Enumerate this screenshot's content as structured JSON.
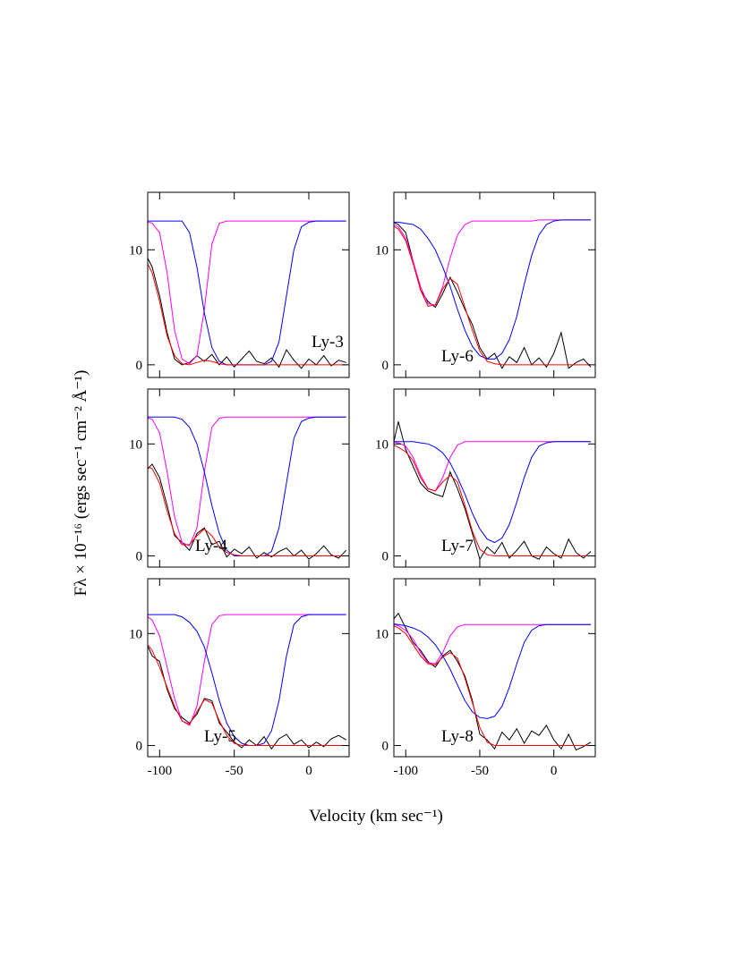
{
  "x_label": "Velocity (km sec⁻¹)",
  "y_label": "Fλ × 10⁻¹⁶ (ergs  sec⁻¹ cm⁻² Å⁻¹)",
  "chart_data": [
    {
      "type": "line",
      "label": "Ly-3",
      "xlim": [
        -108,
        27
      ],
      "ylim": [
        -1.1,
        15
      ],
      "xticks": [
        -100,
        -50,
        0
      ],
      "yticks": [
        0,
        10
      ],
      "x": [
        -110,
        -105,
        -100,
        -95,
        -90,
        -85,
        -80,
        -75,
        -70,
        -65,
        -60,
        -55,
        -50,
        -45,
        -40,
        -35,
        -30,
        -25,
        -20,
        -15,
        -10,
        -5,
        0,
        5,
        10,
        15,
        20,
        25
      ],
      "series": [
        {
          "color": "#000000",
          "values": [
            9.8,
            8.5,
            6,
            2.8,
            0.5,
            0,
            0.2,
            0.8,
            0.3,
            0.9,
            0,
            0.7,
            -0.2,
            0.5,
            1.2,
            0.3,
            0.1,
            0.6,
            -0.2,
            1.3,
            0.4,
            -0.3,
            0.5,
            0,
            0.8,
            -0.1,
            0.4,
            0.2
          ]
        },
        {
          "color": "#ff00ff",
          "values": [
            12.5,
            12.3,
            11.5,
            8,
            3,
            0.5,
            0.1,
            0.8,
            4.8,
            10.5,
            12.3,
            12.5,
            12.5,
            12.5,
            12.5,
            12.5,
            12.5,
            12.5,
            12.5,
            12.5,
            12.5,
            12.5,
            12.5,
            12.5,
            12.5,
            12.5,
            12.5,
            12.5
          ]
        },
        {
          "color": "#0000ff",
          "values": [
            12.5,
            12.5,
            12.5,
            12.5,
            12.5,
            12.5,
            11.5,
            8.5,
            4.5,
            1.5,
            0.3,
            0,
            0,
            0,
            0,
            0,
            0,
            0.3,
            2,
            6,
            10,
            12,
            12.4,
            12.5,
            12.5,
            12.5,
            12.5,
            12.5
          ]
        },
        {
          "color": "#ff0000",
          "values": [
            9.3,
            8,
            5.5,
            2.5,
            0.8,
            0.1,
            0,
            0.2,
            0.4,
            0.3,
            0.1,
            0,
            0,
            0,
            0,
            0,
            0,
            0,
            0,
            0,
            0,
            0,
            0,
            0,
            0,
            0,
            0,
            0
          ]
        }
      ]
    },
    {
      "type": "line",
      "label": "Ly-6",
      "xlim": [
        -108,
        28
      ],
      "ylim": [
        -1.1,
        15
      ],
      "xticks": [
        -100,
        -50,
        0
      ],
      "yticks": [
        0,
        10
      ],
      "x": [
        -110,
        -105,
        -100,
        -95,
        -90,
        -85,
        -80,
        -75,
        -70,
        -65,
        -60,
        -55,
        -50,
        -45,
        -40,
        -35,
        -30,
        -25,
        -20,
        -15,
        -10,
        -5,
        0,
        5,
        10,
        15,
        20,
        25
      ],
      "series": [
        {
          "color": "#000000",
          "values": [
            12.5,
            12.2,
            11.5,
            9,
            6.5,
            5.5,
            5,
            6.2,
            7.6,
            6.3,
            4.8,
            3.5,
            1.5,
            0.5,
            1,
            -0.3,
            0.7,
            0.2,
            1.5,
            0,
            0.6,
            -0.2,
            1,
            2.8,
            -0.3,
            0.2,
            0.5,
            -0.2
          ]
        },
        {
          "color": "#ff00ff",
          "values": [
            12.3,
            12,
            11,
            9,
            6.8,
            5.3,
            5.2,
            6.8,
            9.3,
            11.3,
            12.2,
            12.5,
            12.5,
            12.5,
            12.5,
            12.5,
            12.5,
            12.5,
            12.5,
            12.5,
            12.6,
            12.6,
            12.6,
            12.6,
            12.6,
            12.6,
            12.6,
            12.6
          ]
        },
        {
          "color": "#0000ff",
          "values": [
            12.4,
            12.4,
            12.3,
            12.2,
            11.8,
            11,
            10,
            8.5,
            6.8,
            4.8,
            3,
            1.6,
            0.8,
            0.5,
            0.5,
            1,
            2.2,
            4.2,
            7,
            9.5,
            11.3,
            12.2,
            12.5,
            12.6,
            12.6,
            12.6,
            12.6,
            12.6
          ]
        },
        {
          "color": "#ff0000",
          "values": [
            12.2,
            11.8,
            10.8,
            8.8,
            6.5,
            5.1,
            5.2,
            6.6,
            7.5,
            7,
            5,
            3,
            1.2,
            0.3,
            0.1,
            0,
            0,
            0,
            0,
            0,
            0,
            0,
            0,
            0,
            0,
            0,
            0,
            0
          ]
        }
      ]
    },
    {
      "type": "line",
      "label": "Ly-4",
      "xlim": [
        -108,
        27
      ],
      "ylim": [
        -1,
        14.9
      ],
      "xticks": [
        -100,
        -50,
        0
      ],
      "yticks": [
        0,
        10
      ],
      "x": [
        -110,
        -105,
        -100,
        -95,
        -90,
        -85,
        -80,
        -75,
        -70,
        -65,
        -60,
        -55,
        -50,
        -45,
        -40,
        -35,
        -30,
        -25,
        -20,
        -15,
        -10,
        -5,
        0,
        5,
        10,
        15,
        20,
        25
      ],
      "series": [
        {
          "color": "#000000",
          "values": [
            7.5,
            8.2,
            7,
            4.5,
            1.8,
            1.2,
            0.5,
            2,
            2.5,
            1,
            1.3,
            -0.1,
            0.6,
            0.2,
            0.8,
            -0.2,
            0.3,
            -0.1,
            0.4,
            0.7,
            0,
            0.5,
            -0.3,
            0.2,
            0.9,
            0.1,
            -0.2,
            0.5
          ]
        },
        {
          "color": "#ff00ff",
          "values": [
            12.4,
            12.2,
            11,
            7.5,
            3.5,
            1.2,
            0.9,
            2.5,
            7.5,
            11.5,
            12.3,
            12.4,
            12.4,
            12.4,
            12.4,
            12.4,
            12.4,
            12.4,
            12.4,
            12.4,
            12.4,
            12.4,
            12.4,
            12.4,
            12.4,
            12.4,
            12.4,
            12.4
          ]
        },
        {
          "color": "#0000ff",
          "values": [
            12.4,
            12.4,
            12.4,
            12.4,
            12.4,
            12.2,
            11.5,
            10,
            7.5,
            4.5,
            2,
            0.5,
            0,
            0,
            0,
            0,
            0,
            0.4,
            2.5,
            6.5,
            10.5,
            12,
            12.3,
            12.4,
            12.4,
            12.4,
            12.4,
            12.4
          ]
        },
        {
          "color": "#ff0000",
          "values": [
            8,
            7.8,
            6.5,
            4,
            2,
            1,
            1,
            1.8,
            2.4,
            1.8,
            0.8,
            0.3,
            0.1,
            0,
            0,
            0,
            0,
            0,
            0,
            0,
            0,
            0,
            0,
            0,
            0,
            0,
            0,
            0
          ]
        }
      ]
    },
    {
      "type": "line",
      "label": "Ly-7",
      "xlim": [
        -108,
        28
      ],
      "ylim": [
        -1,
        14.9
      ],
      "xticks": [
        -100,
        -50,
        0
      ],
      "yticks": [
        0,
        10
      ],
      "x": [
        -110,
        -105,
        -100,
        -95,
        -90,
        -85,
        -80,
        -75,
        -70,
        -65,
        -60,
        -55,
        -50,
        -45,
        -40,
        -35,
        -30,
        -25,
        -20,
        -15,
        -10,
        -5,
        0,
        5,
        10,
        15,
        20,
        25
      ],
      "series": [
        {
          "color": "#000000",
          "values": [
            9,
            12,
            9.5,
            8,
            6.5,
            5.8,
            5.5,
            5.3,
            7.5,
            6,
            4.2,
            2,
            -0.3,
            0.8,
            0.2,
            1.2,
            -0.2,
            0.5,
            1.3,
            0,
            -0.3,
            0.8,
            0.2,
            -0.2,
            1.5,
            0.3,
            -0.2,
            0.4
          ]
        },
        {
          "color": "#ff00ff",
          "values": [
            10.2,
            10.1,
            9.8,
            8.8,
            7.2,
            6,
            5.8,
            7,
            8.8,
            9.9,
            10.2,
            10.2,
            10.2,
            10.2,
            10.2,
            10.2,
            10.2,
            10.2,
            10.2,
            10.2,
            10.2,
            10.2,
            10.2,
            10.2,
            10.2,
            10.2,
            10.2,
            10.2
          ]
        },
        {
          "color": "#0000ff",
          "values": [
            10.2,
            10.2,
            10.2,
            10.2,
            10.1,
            10,
            9.7,
            9.2,
            8.3,
            7,
            5.5,
            3.8,
            2.4,
            1.5,
            1.2,
            1.6,
            2.8,
            4.8,
            7,
            8.8,
            9.8,
            10.1,
            10.2,
            10.2,
            10.2,
            10.2,
            10.2,
            10.2
          ]
        },
        {
          "color": "#ff0000",
          "values": [
            10,
            9.7,
            9.3,
            8.5,
            7,
            6,
            5.8,
            6.6,
            7.2,
            6.6,
            4.5,
            2.2,
            0.6,
            0.1,
            0,
            0,
            0,
            0,
            0,
            0,
            0,
            0,
            0,
            0,
            0,
            0,
            0,
            0
          ]
        }
      ]
    },
    {
      "type": "line",
      "label": "Ly-5",
      "xlim": [
        -108,
        27
      ],
      "ylim": [
        -1,
        14.9
      ],
      "xticks": [
        -100,
        -50,
        0
      ],
      "yticks": [
        0,
        10
      ],
      "x": [
        -110,
        -105,
        -100,
        -95,
        -90,
        -85,
        -80,
        -75,
        -70,
        -65,
        -60,
        -55,
        -50,
        -45,
        -40,
        -35,
        -30,
        -25,
        -20,
        -15,
        -10,
        -5,
        0,
        5,
        10,
        15,
        20,
        25
      ],
      "series": [
        {
          "color": "#000000",
          "values": [
            9.5,
            8,
            7.5,
            5,
            3.3,
            2.5,
            2,
            2.8,
            4.2,
            4,
            2,
            1.2,
            0.3,
            -0.2,
            0.5,
            0,
            0.8,
            -0.3,
            0.6,
            1,
            0.1,
            0.5,
            -0.2,
            0.3,
            -0.1,
            0.6,
            0.9,
            0.5
          ]
        },
        {
          "color": "#ff00ff",
          "values": [
            11.7,
            11.2,
            9.8,
            7,
            4.2,
            2.2,
            1.8,
            3.5,
            7.5,
            10.8,
            11.6,
            11.7,
            11.7,
            11.7,
            11.7,
            11.7,
            11.7,
            11.7,
            11.7,
            11.7,
            11.7,
            11.7,
            11.7,
            11.7,
            11.7,
            11.7,
            11.7,
            11.7
          ]
        },
        {
          "color": "#0000ff",
          "values": [
            11.7,
            11.7,
            11.7,
            11.7,
            11.7,
            11.5,
            11,
            10.2,
            8.8,
            6.5,
            4,
            2,
            0.8,
            0.2,
            0,
            0,
            0.2,
            1.3,
            4,
            8,
            10.8,
            11.5,
            11.7,
            11.7,
            11.7,
            11.7,
            11.7,
            11.7
          ]
        },
        {
          "color": "#ff0000",
          "values": [
            9.3,
            8.5,
            7,
            5.2,
            3.5,
            2.2,
            1.9,
            3,
            4.1,
            3.8,
            2.2,
            0.9,
            0.2,
            0,
            0,
            0,
            0,
            0,
            0,
            0,
            0,
            0,
            0,
            0,
            0,
            0,
            0,
            0
          ]
        }
      ]
    },
    {
      "type": "line",
      "label": "Ly-8",
      "xlim": [
        -108,
        28
      ],
      "ylim": [
        -1,
        14.9
      ],
      "xticks": [
        -100,
        -50,
        0
      ],
      "yticks": [
        0,
        10
      ],
      "x": [
        -110,
        -105,
        -100,
        -95,
        -90,
        -85,
        -80,
        -75,
        -70,
        -65,
        -60,
        -55,
        -50,
        -45,
        -40,
        -35,
        -30,
        -25,
        -20,
        -15,
        -10,
        -5,
        0,
        5,
        10,
        15,
        20,
        25
      ],
      "series": [
        {
          "color": "#000000",
          "values": [
            11,
            11.8,
            10.5,
            9.2,
            8.5,
            7.5,
            7,
            8,
            8.5,
            7.5,
            6.2,
            4,
            1,
            0.5,
            -0.3,
            1.2,
            0.5,
            1.5,
            0.2,
            1.3,
            0.9,
            1.8,
            0.5,
            -0.3,
            1,
            -0.4,
            -0.1,
            0.3
          ]
        },
        {
          "color": "#ff00ff",
          "values": [
            10.9,
            10.7,
            10.3,
            9.5,
            8.3,
            7.4,
            7.3,
            8.3,
            9.8,
            10.6,
            10.8,
            10.8,
            10.8,
            10.8,
            10.8,
            10.8,
            10.8,
            10.8,
            10.8,
            10.8,
            10.8,
            10.8,
            10.8,
            10.8,
            10.8,
            10.8,
            10.8,
            10.8
          ]
        },
        {
          "color": "#0000ff",
          "values": [
            10.9,
            10.8,
            10.7,
            10.5,
            10.2,
            9.7,
            9,
            8,
            6.8,
            5.4,
            4,
            3,
            2.5,
            2.4,
            2.6,
            3.5,
            5.2,
            7.3,
            9.2,
            10.3,
            10.7,
            10.8,
            10.8,
            10.8,
            10.8,
            10.8,
            10.8,
            10.8
          ]
        },
        {
          "color": "#ff0000",
          "values": [
            10.8,
            10.5,
            10,
            9,
            8,
            7.3,
            7.2,
            7.9,
            8.3,
            7.8,
            6,
            3.8,
            1.6,
            0.3,
            0,
            0,
            0,
            0,
            0,
            0,
            0,
            0,
            0,
            0,
            0,
            0,
            0,
            0
          ]
        }
      ]
    }
  ]
}
